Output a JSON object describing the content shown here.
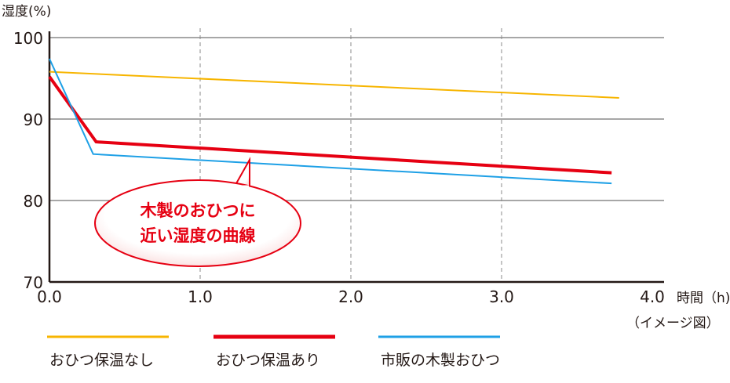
{
  "chart_data": {
    "type": "line",
    "ylabel": "湿度(%)",
    "xlabel": "時間（h)",
    "note": "（イメージ図）",
    "xlim": [
      0,
      4.0
    ],
    "ylim": [
      70,
      100
    ],
    "x_ticks": [
      "0.0",
      "1.0",
      "2.0",
      "3.0",
      "4.0"
    ],
    "y_ticks": [
      "70",
      "80",
      "90",
      "100"
    ],
    "grid": "horizontal solid at y ticks, vertical dashed at x ticks",
    "legend_placement": "bottom",
    "series": [
      {
        "name": "おひつ保温なし",
        "color": "#f7b500",
        "points": [
          [
            0,
            95.8
          ],
          [
            3.78,
            92.6
          ]
        ]
      },
      {
        "name": "おひつ保温あり",
        "color": "#e60012",
        "points": [
          [
            0,
            95.2
          ],
          [
            0.31,
            87.2
          ],
          [
            3.73,
            83.4
          ]
        ]
      },
      {
        "name": "市販の木製おひつ",
        "color": "#1ea0e6",
        "points": [
          [
            0,
            97.4
          ],
          [
            0.29,
            85.7
          ],
          [
            3.73,
            82.1
          ]
        ]
      }
    ],
    "annotation": {
      "lines": [
        "木製のおひつに",
        "近い湿度の曲線"
      ],
      "color": "#e60012"
    }
  }
}
